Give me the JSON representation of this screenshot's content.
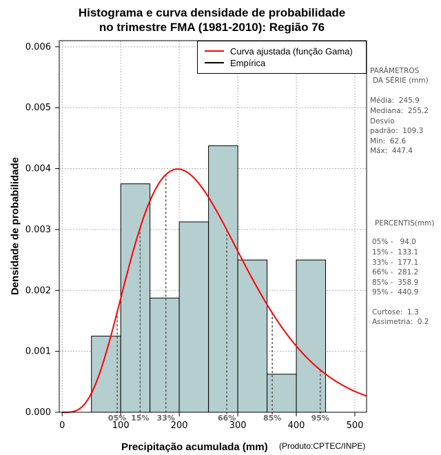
{
  "chart_data": {
    "type": "histogram",
    "title_line1": "Histograma e curva densidade de probabilidade",
    "title_line2": "no trimestre FMA (1981-2010): Região 76",
    "xlabel": "Precipitação acumulada (mm)",
    "ylabel": "Densidade de probabilidade",
    "credit": "(Produto:CPTEC/INPE)",
    "xlim": [
      -5,
      520
    ],
    "ylim": [
      0,
      0.0061
    ],
    "xticks": [
      0,
      100,
      200,
      300,
      400,
      500
    ],
    "yticks": [
      0.0,
      0.001,
      0.002,
      0.003,
      0.004,
      0.005,
      0.006
    ],
    "ytick_labels": [
      "0.000",
      "0.001",
      "0.002",
      "0.003",
      "0.004",
      "0.005",
      "0.006"
    ],
    "grid": true,
    "bin_edges": [
      50,
      100,
      150,
      200,
      250,
      300,
      350,
      400,
      450
    ],
    "densities": [
      0.00125,
      0.00375,
      0.001875,
      0.003125,
      0.004375,
      0.0025,
      0.000625,
      0.0025
    ],
    "bar_color": "#b5cecf",
    "curve_color": "#ff0000",
    "gamma_fit": {
      "mean": 245.9,
      "sd": 109.3
    },
    "legend": {
      "position": "top-right",
      "entries": [
        {
          "label": "Curva ajustada (função Gama)",
          "color": "#ff0000"
        },
        {
          "label": "Empírica",
          "color": "#000000"
        }
      ]
    },
    "percentile_markers": [
      {
        "label": "05%",
        "value": 94.0
      },
      {
        "label": "15%",
        "value": 133.1
      },
      {
        "label": "33%",
        "value": 177.1
      },
      {
        "label": "66%",
        "value": 281.2
      },
      {
        "label": "85%",
        "value": 358.9
      },
      {
        "label": "95%",
        "value": 440.9
      }
    ]
  },
  "stats_panel": {
    "params_title_1": "PARÂMETROS",
    "params_title_2": "DA SÉRIE (mm)",
    "media": "Média:  245.9",
    "mediana": "Mediana:  255.2",
    "desvio_1": "Desvio",
    "desvio_2": "padrão:  109.3",
    "min": "Mín:  62.6",
    "max": "Máx:  447.4",
    "percentis_title": "PERCENTIS(mm)",
    "p05": "05% -   94.0",
    "p15": "15% -  133.1",
    "p33": "33% -  177.1",
    "p66": "66% -  281.2",
    "p85": "85% -  358.9",
    "p95": "95% -  440.9",
    "curtose": "Curtose:  1.3",
    "assimetria": "Assimetria:  0.2"
  }
}
